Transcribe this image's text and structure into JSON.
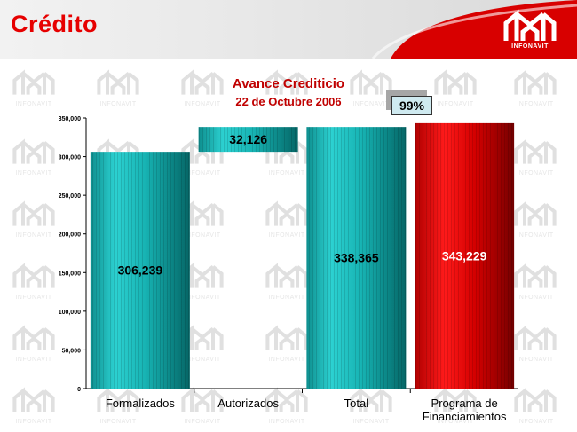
{
  "header": {
    "title": "Crédito",
    "logo_text": "INFONAVIT"
  },
  "watermark_text": "INFONAVIT",
  "chart_data": {
    "type": "bar",
    "title": "Avance Crediticio",
    "subtitle": "22 de Octubre 2006",
    "categories": [
      "Formalizados",
      "Autorizados",
      "Total",
      "Programa de Financiamientos"
    ],
    "values": [
      306239,
      32126,
      338365,
      343229
    ],
    "value_labels": [
      "306,239",
      "32,126",
      "338,365",
      "343,229"
    ],
    "bar_bases": [
      0,
      306239,
      0,
      0
    ],
    "colors": [
      "#1fb5b5",
      "#1fb5b5",
      "#1fb5b5",
      "#d00000"
    ],
    "yticks": [
      0,
      50000,
      100000,
      150000,
      200000,
      250000,
      300000,
      350000
    ],
    "ytick_labels": [
      "0",
      "50,000",
      "100,000",
      "150,000",
      "200,000",
      "250,000",
      "300,000",
      "350,000"
    ],
    "ylim": [
      0,
      350000
    ],
    "annotation": "99%",
    "grid": false
  }
}
